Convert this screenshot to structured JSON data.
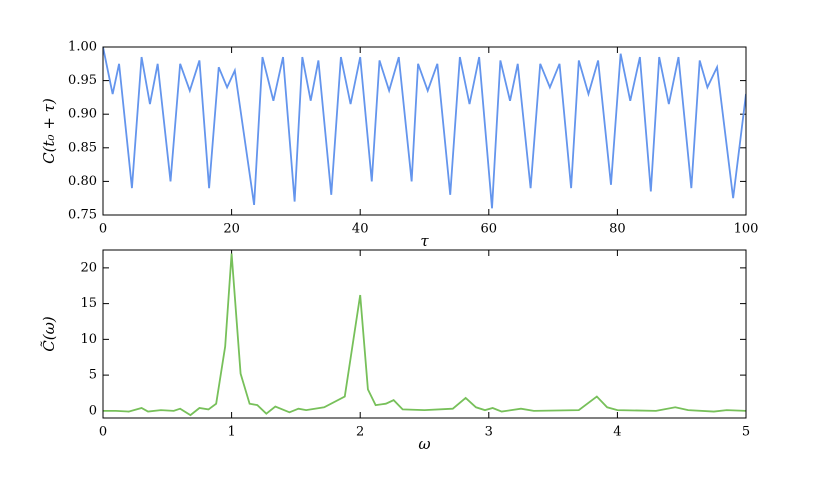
{
  "chart_data": [
    {
      "type": "line",
      "x_label": "τ",
      "y_label": "C(t₀ + τ)",
      "x": [
        0,
        1.5,
        2.5,
        4.5,
        6,
        7.3,
        8.5,
        10.5,
        12,
        13.5,
        15,
        16.5,
        18,
        19.3,
        20.5,
        23.5,
        24.8,
        26.5,
        28,
        29.8,
        31,
        32.3,
        33.5,
        35.5,
        37,
        38.5,
        40,
        41.8,
        43,
        44.5,
        46,
        48,
        49,
        50.5,
        52,
        54,
        55.5,
        57,
        58.5,
        60.5,
        61.8,
        63.3,
        64.5,
        66.5,
        68,
        69.5,
        71,
        72.8,
        74,
        75.5,
        77,
        79,
        80.5,
        82,
        83.5,
        85.2,
        86.5,
        88,
        89.5,
        91.5,
        92.8,
        94,
        95.5,
        98,
        100
      ],
      "series": [
        {
          "name": "C",
          "color": "#6495ed",
          "values": [
            1.0,
            0.93,
            0.975,
            0.79,
            0.985,
            0.915,
            0.975,
            0.8,
            0.975,
            0.935,
            0.98,
            0.79,
            0.97,
            0.94,
            0.965,
            0.765,
            0.985,
            0.92,
            0.985,
            0.77,
            0.985,
            0.92,
            0.98,
            0.78,
            0.985,
            0.915,
            0.985,
            0.8,
            0.98,
            0.935,
            0.985,
            0.8,
            0.975,
            0.935,
            0.975,
            0.78,
            0.985,
            0.915,
            0.985,
            0.76,
            0.98,
            0.92,
            0.975,
            0.79,
            0.975,
            0.94,
            0.975,
            0.79,
            0.98,
            0.93,
            0.98,
            0.795,
            0.99,
            0.92,
            0.985,
            0.785,
            0.985,
            0.915,
            0.985,
            0.79,
            0.98,
            0.94,
            0.97,
            0.775,
            0.93
          ]
        }
      ],
      "xlim": [
        0,
        100
      ],
      "xticks": [
        0,
        20,
        40,
        60,
        80,
        100
      ],
      "ylim": [
        0.75,
        1.0
      ],
      "yticks": [
        0.75,
        {
          "value": 0.8,
          "label": "0.80"
        },
        0.85,
        {
          "value": 0.9,
          "label": "0.90"
        },
        0.95,
        {
          "value": 1.0,
          "label": "1.00"
        }
      ]
    },
    {
      "type": "line",
      "x_label": "ω",
      "y_label": "C̃(ω)",
      "x": [
        0,
        0.1,
        0.2,
        0.3,
        0.35,
        0.45,
        0.55,
        0.6,
        0.68,
        0.75,
        0.82,
        0.88,
        0.95,
        1.0,
        1.07,
        1.14,
        1.2,
        1.27,
        1.34,
        1.45,
        1.52,
        1.58,
        1.72,
        1.88,
        2.0,
        2.06,
        2.12,
        2.2,
        2.26,
        2.33,
        2.5,
        2.72,
        2.82,
        2.9,
        2.97,
        3.03,
        3.1,
        3.25,
        3.35,
        3.7,
        3.84,
        3.92,
        4.0,
        4.3,
        4.45,
        4.55,
        4.75,
        4.85,
        5.0
      ],
      "series": [
        {
          "name": "C̃",
          "color": "#77c05a",
          "values": [
            0,
            0,
            -0.1,
            0.4,
            -0.1,
            0.1,
            0,
            0.3,
            -0.6,
            0.4,
            0.2,
            1,
            9,
            22,
            5.2,
            1,
            0.8,
            -0.4,
            0.6,
            -0.2,
            0.3,
            0.1,
            0.5,
            2,
            16.2,
            3,
            0.8,
            1,
            1.5,
            0.2,
            0.1,
            0.3,
            1.8,
            0.5,
            0.1,
            0.4,
            -0.1,
            0.3,
            0,
            0.1,
            2,
            0.5,
            0.1,
            0,
            0.5,
            0.1,
            -0.1,
            0.1,
            0
          ]
        }
      ],
      "xlim": [
        0,
        5
      ],
      "xticks": [
        0,
        1,
        2,
        3,
        4,
        5
      ],
      "ylim": [
        -1,
        22.5
      ],
      "yticks": [
        0,
        5,
        10,
        15,
        20
      ]
    }
  ]
}
